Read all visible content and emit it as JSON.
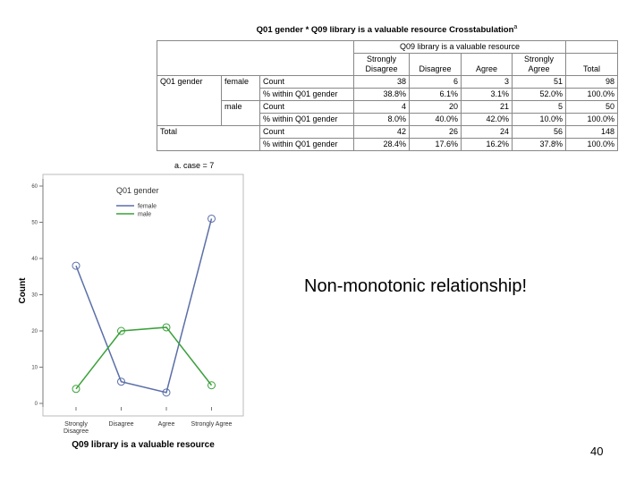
{
  "table": {
    "title": "Q01 gender * Q09 library is a valuable resource Crosstabulation",
    "title_note": "a",
    "column_group": "Q09 library is a valuable resource",
    "columns": [
      "Strongly Disagree",
      "Disagree",
      "Agree",
      "Strongly Agree",
      "Total"
    ],
    "row_header": "Q01 gender",
    "rows": [
      {
        "label": "female",
        "measure": "Count",
        "cells": [
          "38",
          "6",
          "3",
          "51",
          "98"
        ]
      },
      {
        "measure": "% within Q01 gender",
        "cells": [
          "38.8%",
          "6.1%",
          "3.1%",
          "52.0%",
          "100.0%"
        ]
      },
      {
        "label": "male",
        "measure": "Count",
        "cells": [
          "4",
          "20",
          "21",
          "5",
          "50"
        ]
      },
      {
        "measure": "% within Q01 gender",
        "cells": [
          "8.0%",
          "40.0%",
          "42.0%",
          "10.0%",
          "100.0%"
        ]
      },
      {
        "label": "Total",
        "measure": "Count",
        "cells": [
          "42",
          "26",
          "24",
          "56",
          "148"
        ]
      },
      {
        "measure": "% within Q01 gender",
        "cells": [
          "28.4%",
          "17.6%",
          "16.2%",
          "37.8%",
          "100.0%"
        ]
      }
    ],
    "footnote": "a. case = 7"
  },
  "chart_data": {
    "type": "line",
    "x_label": "Q09 library is a valuable resource",
    "y_label": "Count",
    "legend_title": "Q01 gender",
    "categories": [
      "Strongly Disagree",
      "Disagree",
      "Agree",
      "Strongly Agree"
    ],
    "series": [
      {
        "name": "female",
        "color": "#5b6fa8",
        "values": [
          38,
          6,
          3,
          51
        ]
      },
      {
        "name": "male",
        "color": "#3aa03a",
        "values": [
          4,
          20,
          21,
          5
        ]
      }
    ],
    "ylim": [
      0,
      60
    ],
    "yticks": [
      0,
      10,
      20,
      30,
      40,
      50,
      60
    ]
  },
  "note": "Non-monotonic relationship!",
  "page_number": "40"
}
